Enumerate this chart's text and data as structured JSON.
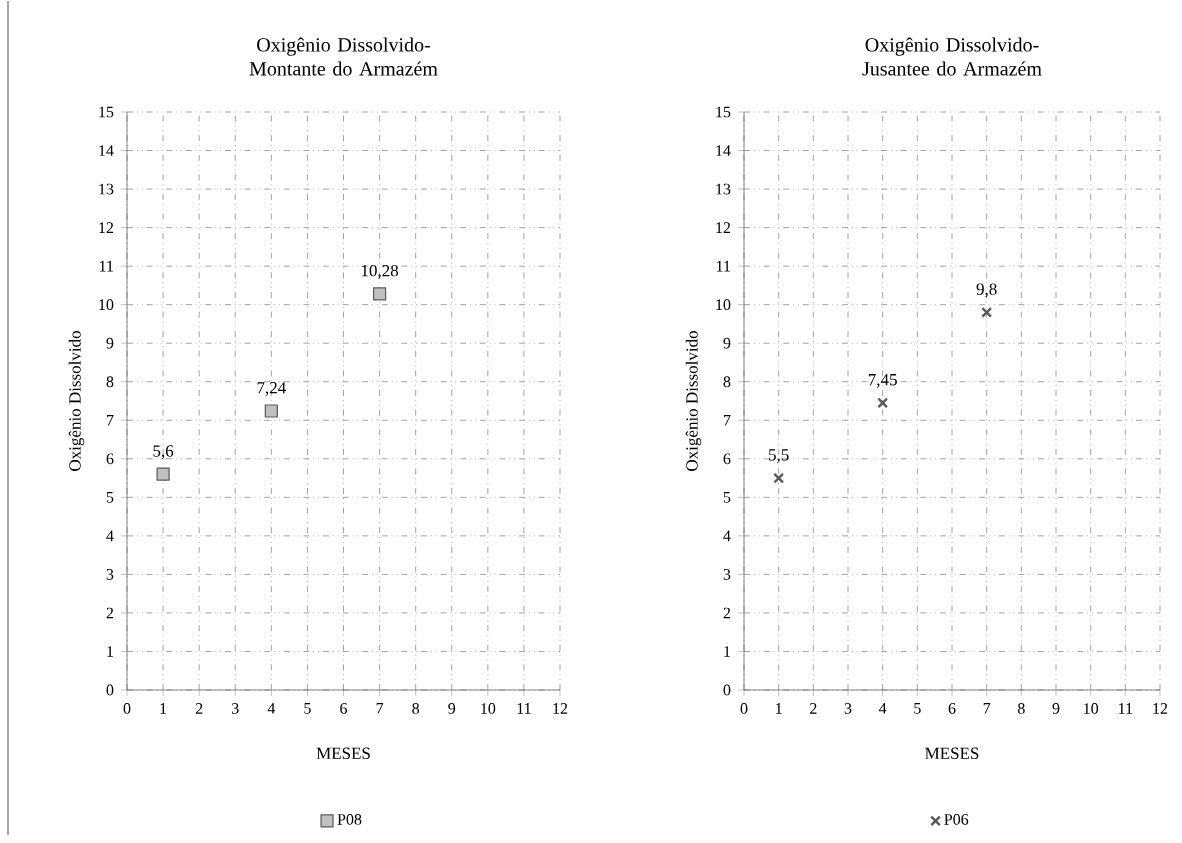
{
  "chart_data": [
    {
      "type": "scatter",
      "title": "Oxigênio Dissolvido- Montante do Armazém",
      "xlabel": "MESES",
      "ylabel": "Oxigênio Dissolvido",
      "x": [
        1,
        4,
        7
      ],
      "series": [
        {
          "name": "P08",
          "color": "#c0c0c0",
          "values": [
            5.6,
            7.24,
            10.28
          ],
          "value_labels": [
            "5,6",
            "7,24",
            "10,28"
          ]
        }
      ],
      "marker": "square",
      "xlim": [
        0,
        12
      ],
      "ylim": [
        0,
        15
      ],
      "xticks": [
        0,
        1,
        2,
        3,
        4,
        5,
        6,
        7,
        8,
        9,
        10,
        11,
        12
      ],
      "yticks": [
        0,
        1,
        2,
        3,
        4,
        5,
        6,
        7,
        8,
        9,
        10,
        11,
        12,
        13,
        14,
        15
      ],
      "grid": true,
      "legend": "bottom"
    },
    {
      "type": "scatter",
      "title": "Oxigênio Dissolvido- Jusantee do Armazém",
      "xlabel": "MESES",
      "ylabel": "Oxigênio Dissolvido",
      "x": [
        1,
        4,
        7
      ],
      "series": [
        {
          "name": "P06",
          "color": "#595959",
          "values": [
            5.5,
            7.45,
            9.8
          ],
          "value_labels": [
            "5,5",
            "7,45",
            "9,8"
          ]
        }
      ],
      "marker": "cross",
      "xlim": [
        0,
        12
      ],
      "ylim": [
        0,
        15
      ],
      "xticks": [
        0,
        1,
        2,
        3,
        4,
        5,
        6,
        7,
        8,
        9,
        10,
        11,
        12
      ],
      "yticks": [
        0,
        1,
        2,
        3,
        4,
        5,
        6,
        7,
        8,
        9,
        10,
        11,
        12,
        13,
        14,
        15
      ],
      "grid": true,
      "legend": "bottom"
    }
  ]
}
